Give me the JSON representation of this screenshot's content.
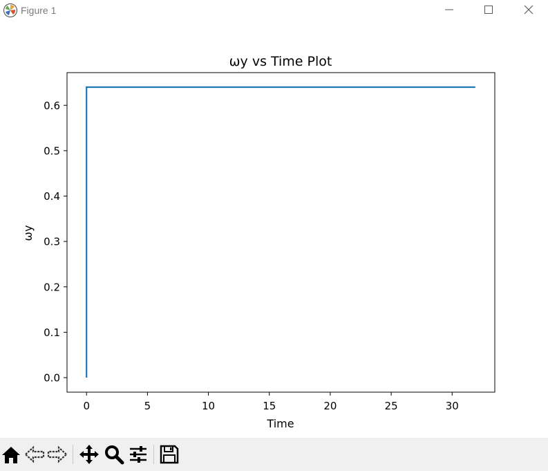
{
  "window": {
    "title": "Figure 1",
    "app_icon": "matplotlib-icon",
    "controls": [
      "minimize-icon",
      "maximize-icon",
      "close-icon"
    ]
  },
  "chart_data": {
    "type": "line",
    "title": "ωy vs Time Plot",
    "xlabel": "Time",
    "ylabel": "ωy",
    "xlim": [
      -1.6,
      33.5
    ],
    "ylim": [
      -0.032,
      0.672
    ],
    "xticks": [
      0,
      5,
      10,
      15,
      20,
      25,
      30
    ],
    "yticks": [
      0.0,
      0.1,
      0.2,
      0.3,
      0.4,
      0.5,
      0.6
    ],
    "ytick_labels": [
      "0.0",
      "0.1",
      "0.2",
      "0.3",
      "0.4",
      "0.5",
      "0.6"
    ],
    "grid": false,
    "series": [
      {
        "color": "#1f77b4",
        "x": [
          0,
          0,
          31.9
        ],
        "y": [
          0.0,
          0.64,
          0.64
        ]
      }
    ]
  },
  "toolbar": {
    "buttons": [
      "home-icon",
      "back-icon",
      "forward-icon",
      "pan-icon",
      "zoom-icon",
      "configure-subplots-icon",
      "save-icon"
    ]
  }
}
